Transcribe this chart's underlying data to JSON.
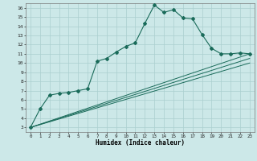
{
  "xlabel": "Humidex (Indice chaleur)",
  "bg_color": "#cce8e8",
  "grid_color": "#aacfcf",
  "line_color": "#1a6b5a",
  "xlim": [
    -0.5,
    23.5
  ],
  "ylim": [
    2.5,
    16.5
  ],
  "xticks": [
    0,
    1,
    2,
    3,
    4,
    5,
    6,
    7,
    8,
    9,
    10,
    11,
    12,
    13,
    14,
    15,
    16,
    17,
    18,
    19,
    20,
    21,
    22,
    23
  ],
  "yticks": [
    3,
    4,
    5,
    6,
    7,
    8,
    9,
    10,
    11,
    12,
    13,
    14,
    15,
    16
  ],
  "main_x": [
    0,
    1,
    2,
    3,
    4,
    5,
    6,
    7,
    8,
    9,
    10,
    11,
    12,
    13,
    14,
    15,
    16,
    17,
    18,
    19,
    20,
    21,
    22,
    23
  ],
  "main_y": [
    3.0,
    5.0,
    6.5,
    6.7,
    6.8,
    7.0,
    7.2,
    10.2,
    10.5,
    11.2,
    11.8,
    12.2,
    14.3,
    16.3,
    15.5,
    15.8,
    14.9,
    14.8,
    13.1,
    11.6,
    11.0,
    11.0,
    11.1,
    11.0
  ],
  "line2_x": [
    0,
    23
  ],
  "line2_y": [
    3.0,
    11.0
  ],
  "line3_x": [
    0,
    23
  ],
  "line3_y": [
    3.0,
    10.5
  ],
  "line4_x": [
    0,
    23
  ],
  "line4_y": [
    3.0,
    10.0
  ]
}
